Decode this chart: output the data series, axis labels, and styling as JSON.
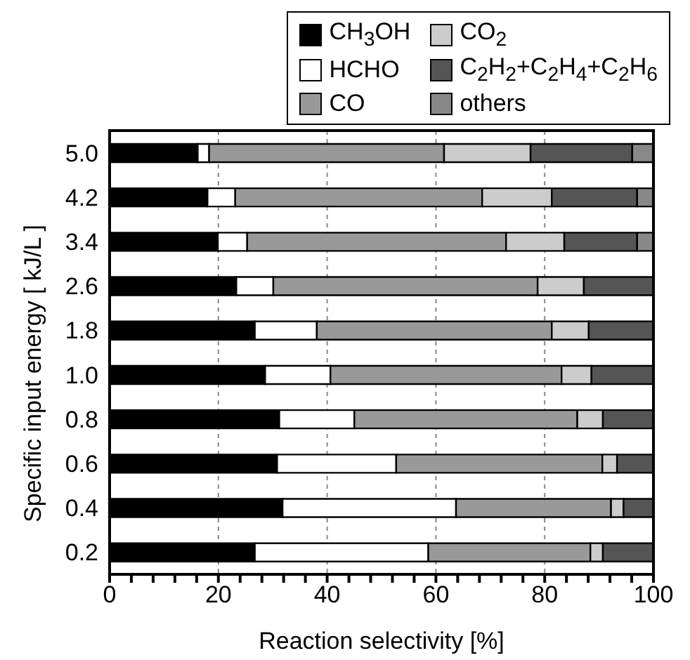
{
  "chart_data": {
    "type": "bar",
    "orientation": "horizontal",
    "stacked": true,
    "categories": [
      "5.0",
      "4.2",
      "3.4",
      "2.6",
      "1.8",
      "1.0",
      "0.8",
      "0.6",
      "0.4",
      "0.2"
    ],
    "xlabel": "Reaction selectivity [%]",
    "ylabel": "Specific input energy [ kJ/L ]",
    "xlim": [
      0,
      100
    ],
    "xticks": [
      0,
      {
        "value": 4,
        "label": null
      },
      {
        "value": 8,
        "label": null
      },
      {
        "value": 12,
        "label": null
      },
      {
        "value": 16,
        "label": null
      },
      20,
      {
        "value": 24,
        "label": null
      },
      {
        "value": 28,
        "label": null
      },
      {
        "value": 32,
        "label": null
      },
      {
        "value": 36,
        "label": null
      },
      40,
      {
        "value": 44,
        "label": null
      },
      {
        "value": 48,
        "label": null
      },
      {
        "value": 52,
        "label": null
      },
      {
        "value": 56,
        "label": null
      },
      60,
      {
        "value": 64,
        "label": null
      },
      {
        "value": 68,
        "label": null
      },
      {
        "value": 72,
        "label": null
      },
      {
        "value": 76,
        "label": null
      },
      80,
      {
        "value": 84,
        "label": null
      },
      {
        "value": 88,
        "label": null
      },
      {
        "value": 92,
        "label": null
      },
      {
        "value": 96,
        "label": null
      },
      100
    ],
    "grid": "x",
    "legend": "top",
    "series": [
      {
        "name": "CH$_{3}$OH",
        "color": "#000000",
        "values": [
          16.2,
          18.0,
          19.9,
          23.3,
          26.7,
          28.6,
          31.2,
          30.8,
          31.8,
          26.7
        ]
      },
      {
        "name": "HCHO",
        "color": "#ffffff",
        "values": [
          2.1,
          5.1,
          5.4,
          6.8,
          11.4,
          12.0,
          13.8,
          21.9,
          31.9,
          31.9
        ]
      },
      {
        "name": "CO",
        "color": "#999999",
        "values": [
          43.2,
          45.4,
          47.6,
          48.6,
          43.2,
          42.5,
          41.0,
          37.9,
          28.5,
          29.8
        ]
      },
      {
        "name": "CO$_{2}$",
        "color": "#cccccc",
        "values": [
          15.9,
          12.8,
          10.7,
          8.5,
          6.8,
          5.5,
          4.7,
          2.7,
          2.3,
          2.3
        ]
      },
      {
        "name": "C$_{2}$H$_{2}$+C$_{2}$H$_{4}$+C$_{2}$H$_{6}$",
        "color": "#555555",
        "values": [
          18.7,
          15.7,
          13.4,
          12.8,
          11.9,
          11.4,
          9.3,
          6.7,
          5.5,
          9.3
        ]
      },
      {
        "name": "others",
        "color": "#888888",
        "values": [
          3.9,
          3.0,
          3.0,
          0,
          0,
          0,
          0,
          0,
          0,
          0
        ]
      }
    ]
  }
}
